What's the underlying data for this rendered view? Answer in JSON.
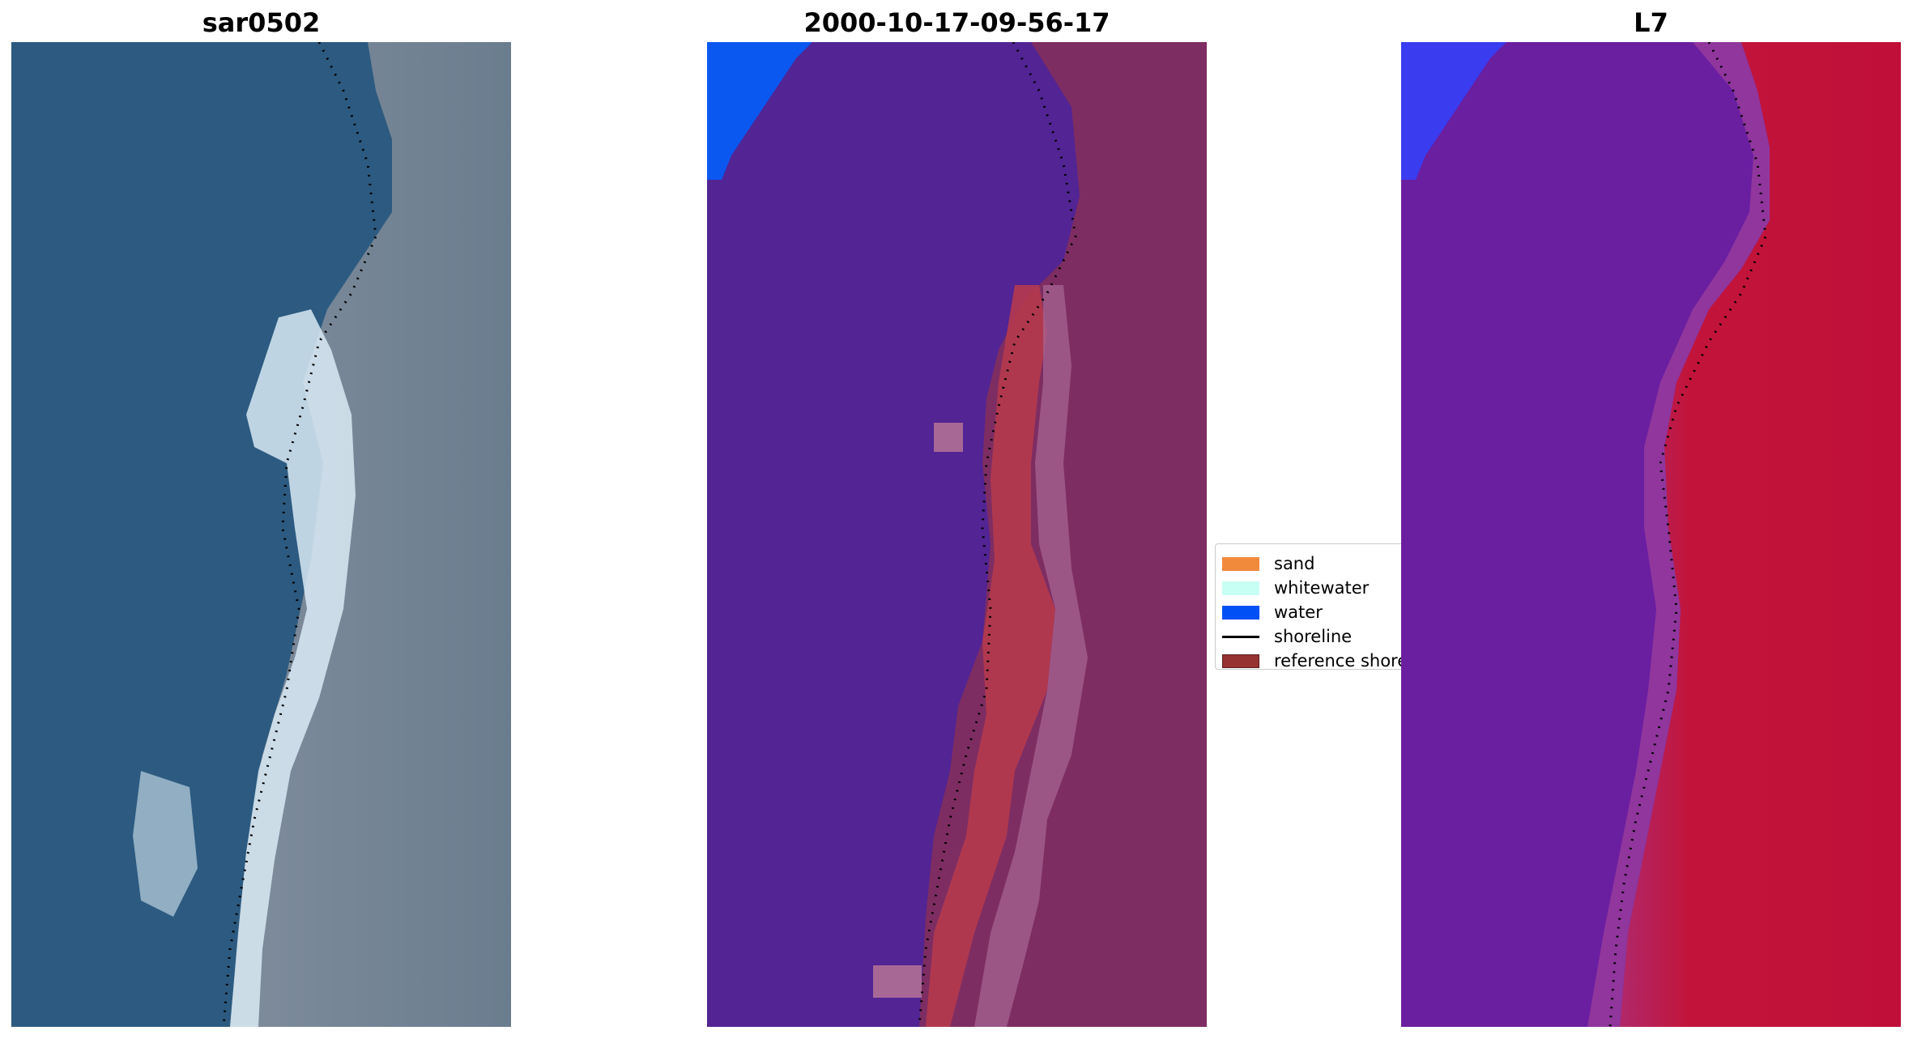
{
  "panels": [
    {
      "title": "sar0502"
    },
    {
      "title": "2000-10-17-09-56-17"
    },
    {
      "title": "L7"
    }
  ],
  "legend": {
    "items": [
      {
        "label": "sand",
        "color": "#f28a3c",
        "kind": "patch"
      },
      {
        "label": "whitewater",
        "color": "#c8fff5",
        "kind": "patch"
      },
      {
        "label": "water",
        "color": "#0050f5",
        "kind": "patch"
      },
      {
        "label": "shoreline",
        "color": "#000000",
        "kind": "line"
      },
      {
        "label": "reference shore",
        "color": "#963232",
        "kind": "patch"
      }
    ]
  },
  "colors": {
    "sea_rgb": "#2c5a80",
    "classified_water_overlay": "#522494",
    "classified_land": "#7e2d62",
    "classified_reference": "#b53a4e",
    "water_blue": "#0a58f0",
    "index_land": "#c2143a",
    "index_water": "#6a1ea0"
  }
}
